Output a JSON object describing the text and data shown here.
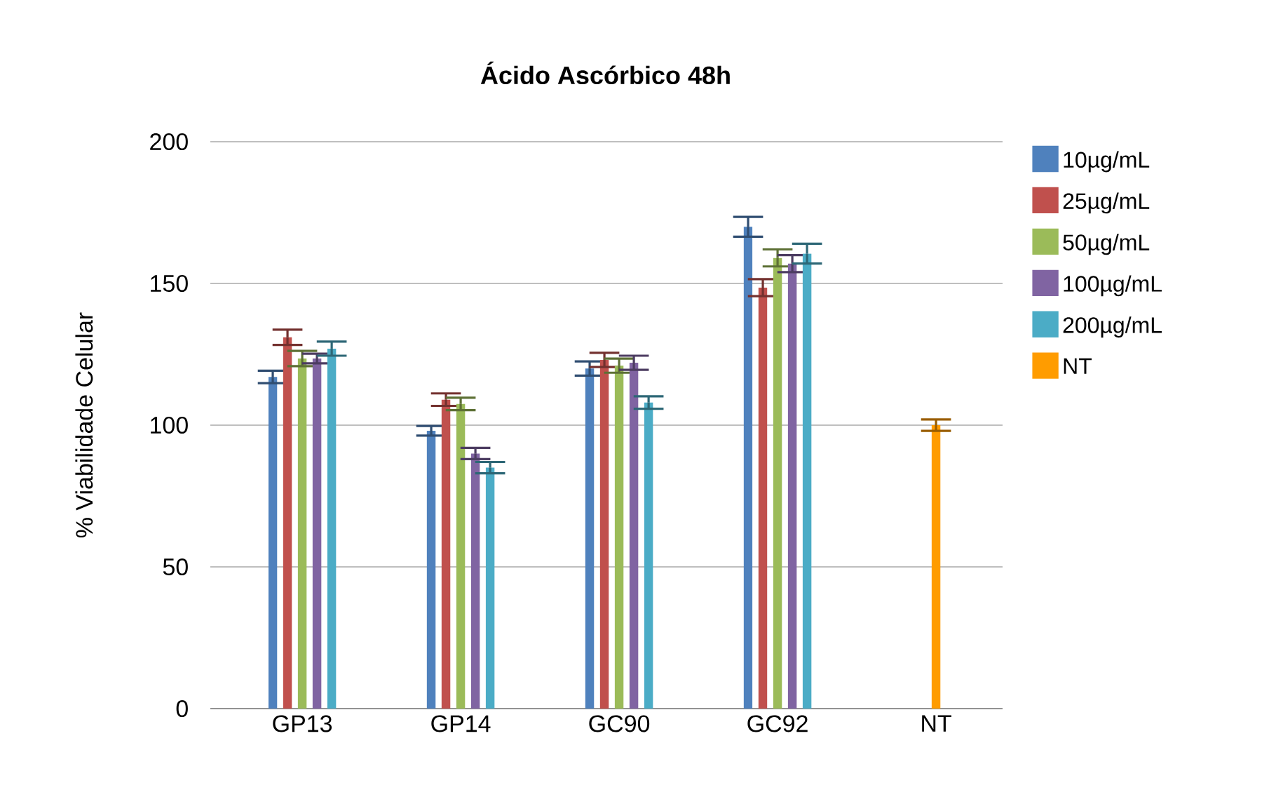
{
  "chart_data": {
    "type": "bar",
    "title": "Ácido Ascórbico 48h",
    "ylabel": "% Viabilidade Celular",
    "categories": [
      "GP13",
      "GP14",
      "GC90",
      "GC92",
      "NT"
    ],
    "series": [
      {
        "name": "10µg/mL",
        "color": "#4f81bd",
        "values": [
          117,
          98,
          120,
          170,
          null
        ],
        "errors": [
          2.2,
          1.7,
          2.5,
          3.5,
          null
        ]
      },
      {
        "name": "25µg/mL",
        "color": "#c0504d",
        "values": [
          131,
          109,
          123,
          148.5,
          null
        ],
        "errors": [
          2.7,
          2.2,
          2.5,
          3,
          null
        ]
      },
      {
        "name": "50µg/mL",
        "color": "#9bbb59",
        "values": [
          123.5,
          107.5,
          121,
          159,
          null
        ],
        "errors": [
          2.7,
          2.2,
          2.5,
          3,
          null
        ]
      },
      {
        "name": "100µg/mL",
        "color": "#8064a2",
        "values": [
          123.5,
          90,
          122,
          157,
          null
        ],
        "errors": [
          1.7,
          2,
          2.5,
          3,
          null
        ]
      },
      {
        "name": "200µg/mL",
        "color": "#4bacc6",
        "values": [
          127,
          85,
          108,
          160.5,
          null
        ],
        "errors": [
          2.5,
          2,
          2.2,
          3.5,
          null
        ]
      },
      {
        "name": "NT",
        "color": "#ff9c00",
        "values": [
          null,
          null,
          null,
          null,
          100
        ],
        "errors": [
          null,
          null,
          null,
          null,
          2
        ]
      }
    ],
    "ylim": [
      0,
      200
    ],
    "yticks": [
      0,
      50,
      100,
      150,
      200
    ],
    "grid": "y",
    "legend": "right"
  }
}
